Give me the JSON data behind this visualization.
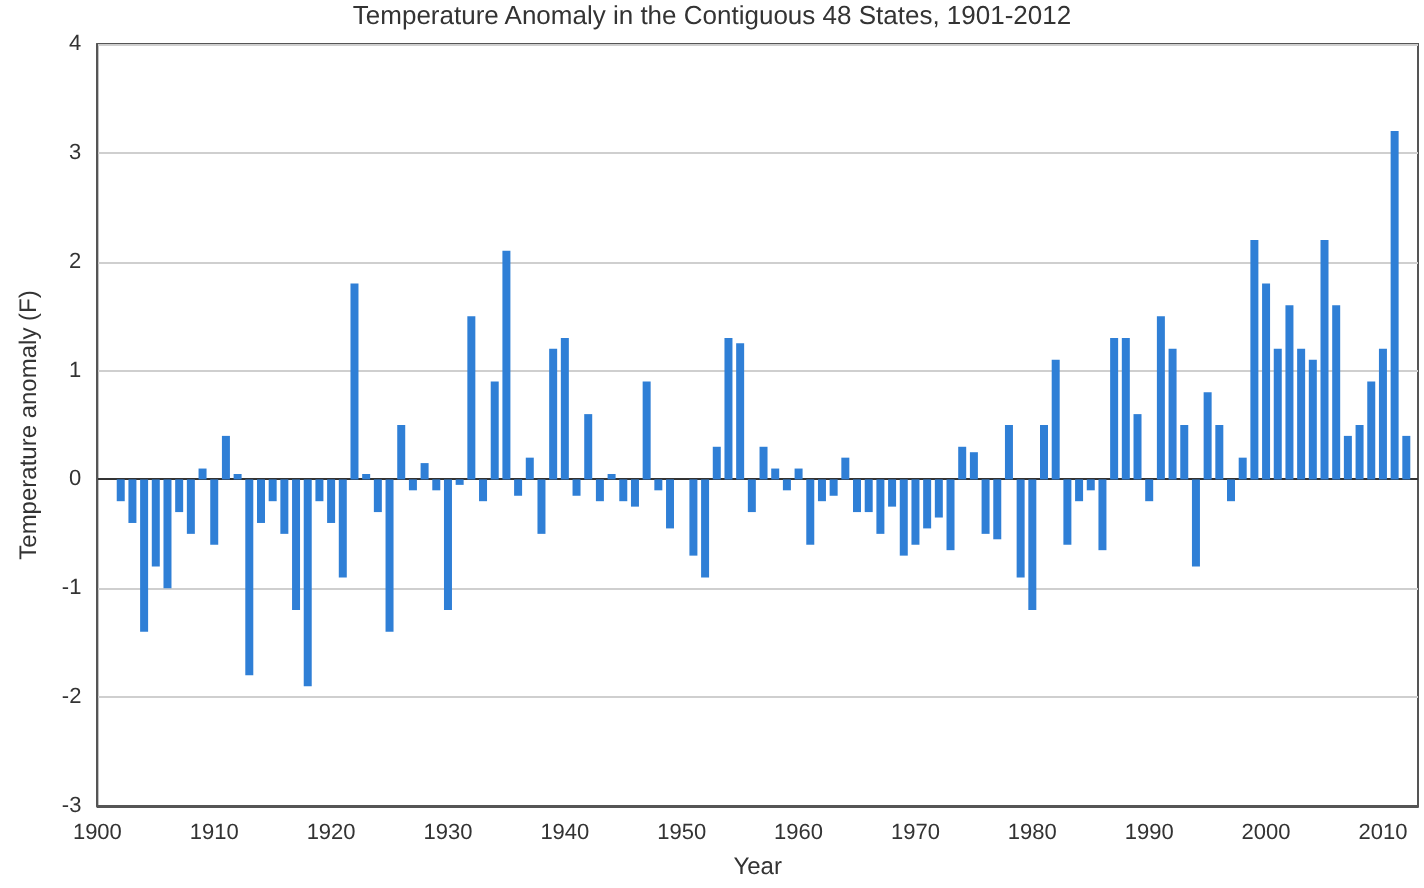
{
  "chart_data": {
    "type": "bar",
    "title": "Temperature Anomaly in the Contiguous 48 States, 1901-2012",
    "xlabel": "Year",
    "ylabel": "Temperature anomaly (F)",
    "x": [
      1902,
      1903,
      1904,
      1905,
      1906,
      1907,
      1908,
      1909,
      1910,
      1911,
      1912,
      1913,
      1914,
      1915,
      1916,
      1917,
      1918,
      1919,
      1920,
      1921,
      1922,
      1923,
      1924,
      1925,
      1926,
      1927,
      1928,
      1929,
      1930,
      1931,
      1932,
      1933,
      1934,
      1935,
      1936,
      1937,
      1938,
      1939,
      1940,
      1941,
      1942,
      1943,
      1944,
      1945,
      1946,
      1947,
      1948,
      1949,
      1950,
      1951,
      1952,
      1953,
      1954,
      1955,
      1956,
      1957,
      1958,
      1959,
      1960,
      1961,
      1962,
      1963,
      1964,
      1965,
      1966,
      1967,
      1968,
      1969,
      1970,
      1971,
      1972,
      1973,
      1974,
      1975,
      1976,
      1977,
      1978,
      1979,
      1980,
      1981,
      1982,
      1983,
      1984,
      1985,
      1986,
      1987,
      1988,
      1989,
      1990,
      1991,
      1992,
      1993,
      1994,
      1995,
      1996,
      1997,
      1998,
      1999,
      2000,
      2001,
      2002,
      2003,
      2004,
      2005,
      2006,
      2007,
      2008,
      2009,
      2010,
      2011,
      2012
    ],
    "values": [
      -0.2,
      -0.4,
      -1.4,
      -0.8,
      -1.0,
      -0.3,
      -0.5,
      0.1,
      -0.6,
      0.4,
      0.05,
      -1.8,
      -0.4,
      -0.2,
      -0.5,
      -1.2,
      -1.9,
      -0.2,
      -0.4,
      -0.9,
      1.8,
      0.05,
      -0.3,
      -1.4,
      0.5,
      -0.1,
      0.15,
      -0.1,
      -1.2,
      -0.05,
      1.5,
      -0.2,
      0.9,
      2.1,
      -0.15,
      0.2,
      -0.5,
      1.2,
      1.3,
      -0.15,
      0.6,
      -0.2,
      0.05,
      -0.2,
      -0.25,
      0.9,
      -0.1,
      -0.45,
      0,
      -0.7,
      -0.9,
      0.3,
      1.3,
      1.25,
      -0.3,
      0.3,
      0.1,
      -0.1,
      0.1,
      -0.6,
      -0.2,
      -0.15,
      0.2,
      -0.3,
      -0.3,
      -0.5,
      -0.25,
      -0.7,
      -0.6,
      -0.45,
      -0.35,
      -0.65,
      0.3,
      0.25,
      -0.5,
      -0.55,
      0.5,
      -0.9,
      -1.2,
      0.5,
      1.1,
      -0.6,
      -0.2,
      -0.1,
      -0.65,
      1.3,
      1.3,
      0.6,
      -0.2,
      1.5,
      1.2,
      0.5,
      -0.8,
      0.8,
      0.5,
      -0.2,
      0.2,
      2.2,
      1.8,
      1.2,
      1.6,
      1.2,
      1.1,
      2.2,
      1.6,
      0.4,
      0.5,
      0.9,
      1.2,
      3.2,
      0.4
    ],
    "color": "#2f7fd6",
    "xlim": [
      1900,
      2013
    ],
    "xticks": [
      1900,
      1910,
      1920,
      1930,
      1940,
      1950,
      1960,
      1970,
      1980,
      1990,
      2000,
      2010
    ],
    "ylim": [
      -3,
      4
    ],
    "yticks": [
      -3,
      -2,
      -1,
      0,
      1,
      2,
      3,
      4
    ],
    "grid": "y"
  }
}
